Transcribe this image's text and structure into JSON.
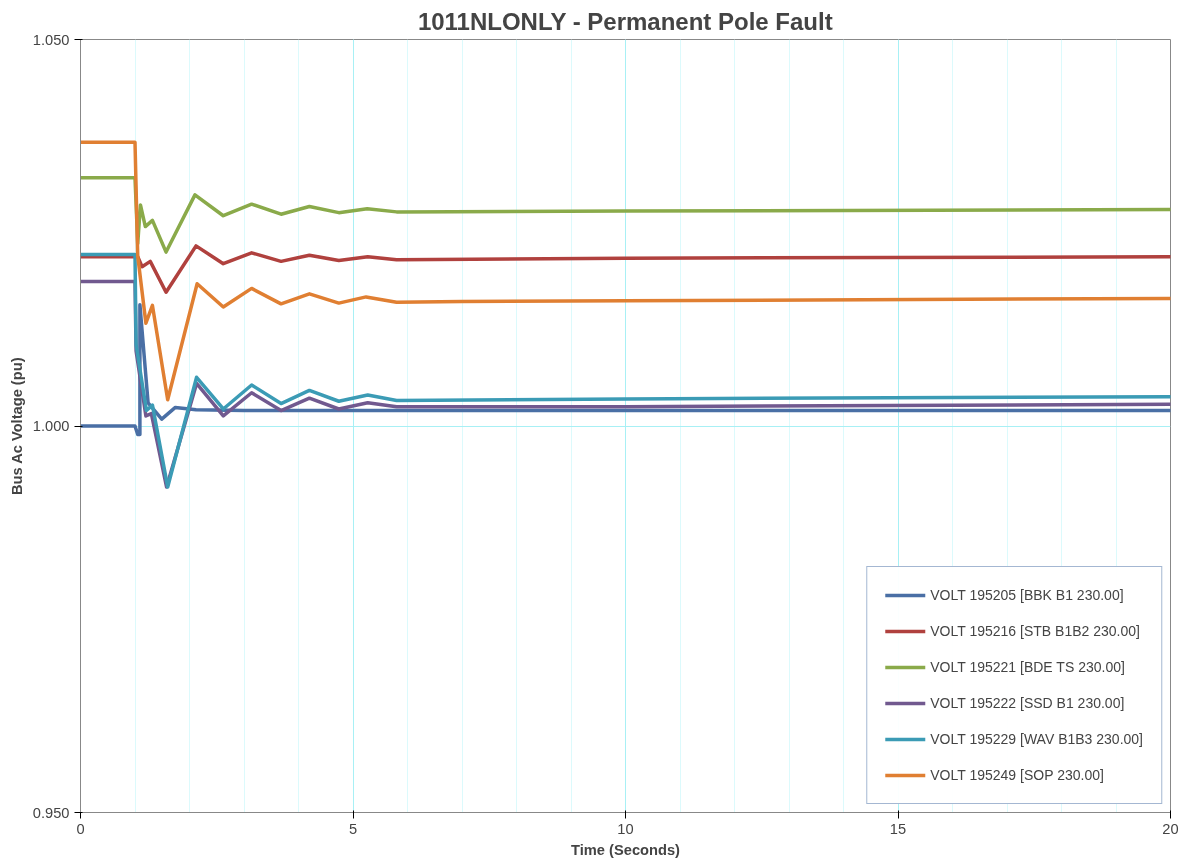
{
  "chart_data": {
    "type": "line",
    "title": "1011NLONLY - Permanent Pole Fault",
    "xlabel": "Time (Seconds)",
    "ylabel": "Bus Ac Voltage (pu)",
    "xlim": [
      0,
      20
    ],
    "xticks": [
      0,
      5,
      10,
      15,
      20
    ],
    "ylim": [
      0.95,
      1.05
    ],
    "yticks": [
      {
        "value": 0.95,
        "label": "0.950"
      },
      {
        "value": 1.0,
        "label": "1.000"
      },
      {
        "value": 1.05,
        "label": "1.050"
      }
    ],
    "grid": true,
    "legend": "bottom right",
    "marker": "none",
    "line_style": "solid",
    "series": [
      {
        "name": "VOLT 195205 [BBK B1 230.00]",
        "color": "#4a6fa5",
        "x": [
          0,
          1.0,
          1.05,
          1.09,
          1.09,
          1.24,
          1.49,
          1.74,
          2.12,
          3,
          5,
          10,
          20
        ],
        "values": [
          1.0,
          1.0,
          0.9989,
          0.9989,
          1.0157,
          1.003,
          1.0009,
          1.0024,
          1.0021,
          1.002,
          1.002,
          1.002,
          1.002
        ]
      },
      {
        "name": "VOLT 195216 [STB B1B2 230.00]",
        "color": "#b0413e",
        "x": [
          0,
          1.0,
          1.05,
          1.13,
          1.28,
          1.57,
          2.12,
          2.62,
          3.14,
          3.68,
          4.2,
          4.74,
          5.27,
          5.8,
          10,
          20
        ],
        "values": [
          1.0219,
          1.0219,
          1.0219,
          1.0206,
          1.0213,
          1.0173,
          1.0233,
          1.021,
          1.0224,
          1.0213,
          1.0221,
          1.0214,
          1.0219,
          1.0215,
          1.0217,
          1.0219
        ]
      },
      {
        "name": "VOLT 195221 [BDE TS 230.00]",
        "color": "#8aaa4a",
        "x": [
          0,
          1.0,
          1.05,
          1.1,
          1.19,
          1.32,
          1.57,
          2.1,
          2.62,
          3.14,
          3.68,
          4.2,
          4.74,
          5.26,
          5.8,
          10,
          20
        ],
        "values": [
          1.0321,
          1.0321,
          1.0236,
          1.0286,
          1.0258,
          1.0266,
          1.0225,
          1.0299,
          1.0272,
          1.0287,
          1.0274,
          1.0284,
          1.0276,
          1.0281,
          1.0277,
          1.0278,
          1.028
        ]
      },
      {
        "name": "VOLT 195222 [SSD B1 230.00]",
        "color": "#71598f",
        "x": [
          0,
          1.0,
          1.02,
          1.2,
          1.3,
          1.58,
          2.13,
          2.62,
          3.14,
          3.68,
          4.2,
          4.74,
          5.27,
          5.8,
          10,
          20
        ],
        "values": [
          1.0187,
          1.0187,
          1.0097,
          1.0013,
          1.0016,
          0.9921,
          1.0055,
          1.0013,
          1.0043,
          1.002,
          1.0036,
          1.0022,
          1.003,
          1.0025,
          1.0025,
          1.0028
        ]
      },
      {
        "name": "VOLT 195229 [WAV B1B3 230.00]",
        "color": "#3b9bb5",
        "x": [
          0,
          1.0,
          1.02,
          1.21,
          1.32,
          1.6,
          2.13,
          2.62,
          3.14,
          3.68,
          4.2,
          4.74,
          5.27,
          5.8,
          10,
          20
        ],
        "values": [
          1.0222,
          1.0222,
          1.0105,
          1.002,
          1.0027,
          0.9921,
          1.0063,
          1.0022,
          1.0053,
          1.0029,
          1.0046,
          1.0032,
          1.004,
          1.0033,
          1.0035,
          1.0038
        ]
      },
      {
        "name": "VOLT 195249 [SOP 230.00]",
        "color": "#e07f32",
        "x": [
          0,
          1.0,
          1.05,
          1.2,
          1.32,
          1.6,
          2.14,
          2.62,
          3.14,
          3.68,
          4.2,
          4.74,
          5.24,
          5.8,
          7,
          10,
          20
        ],
        "values": [
          1.0367,
          1.0367,
          1.022,
          1.0133,
          1.0156,
          1.0034,
          1.0184,
          1.0154,
          1.0178,
          1.0158,
          1.0171,
          1.0159,
          1.0167,
          1.016,
          1.0161,
          1.0162,
          1.0165
        ]
      }
    ]
  }
}
